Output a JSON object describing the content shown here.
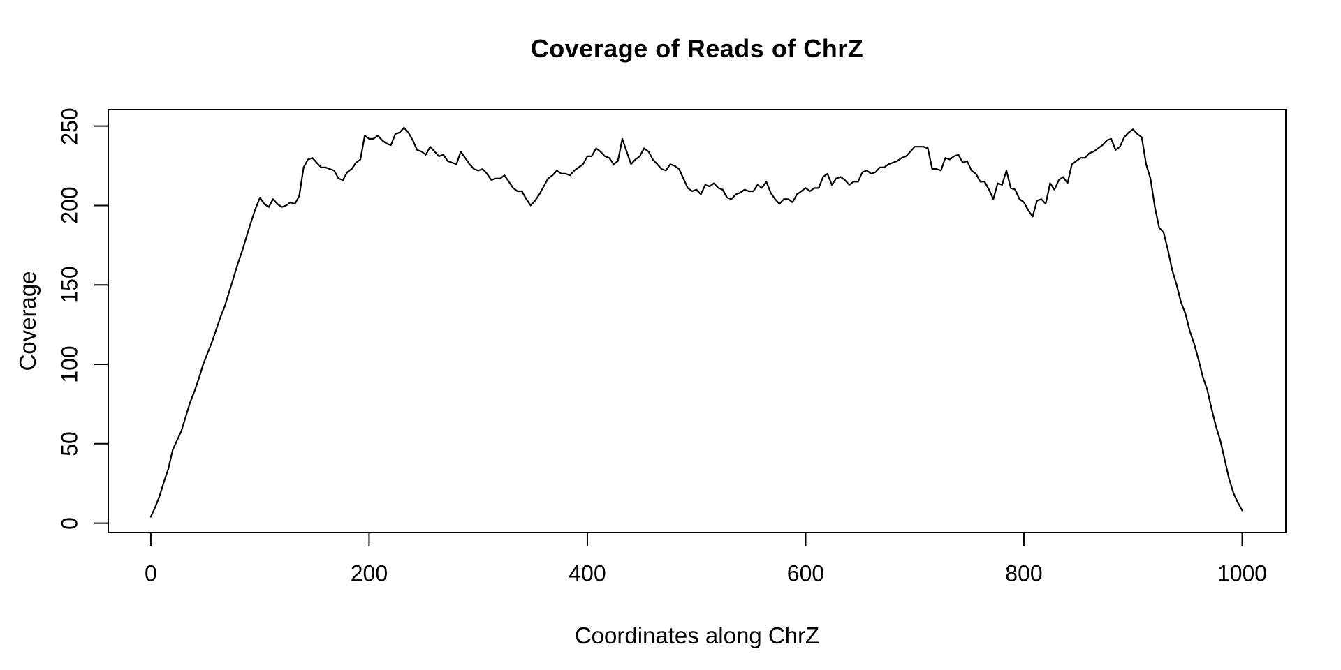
{
  "page": {
    "background_color": "#ffffff",
    "foreground_color": "#000000"
  },
  "chart_data": {
    "type": "line",
    "title": "Coverage of Reads of ChrZ",
    "xlabel": "Coordinates along ChrZ",
    "ylabel": "Coverage",
    "grid": false,
    "legend_position": "none",
    "line_color": "#000000",
    "x_ticks": [
      0,
      200,
      400,
      600,
      800,
      1000
    ],
    "y_ticks": [
      0,
      50,
      100,
      150,
      200,
      250
    ],
    "xlim": [
      -39,
      1040
    ],
    "ylim": [
      -5.9,
      260.4
    ],
    "series": [
      {
        "name": "coverage",
        "x_start": 0,
        "x_step": 4,
        "y": [
          4,
          10,
          17,
          26,
          34,
          46,
          52,
          58,
          67,
          76,
          83,
          91,
          100,
          107,
          114,
          122,
          130,
          137,
          146,
          155,
          164,
          172,
          181,
          190,
          198,
          205,
          201,
          199,
          204,
          201,
          199,
          200,
          202,
          201,
          206,
          224,
          229,
          230,
          227,
          224,
          224,
          223,
          222,
          217,
          216,
          221,
          223,
          227,
          229,
          244,
          242,
          242,
          244,
          241,
          239,
          238,
          245,
          246,
          249,
          246,
          241,
          235,
          234,
          232,
          237,
          234,
          231,
          232,
          228,
          227,
          226,
          234,
          230,
          226,
          223,
          222,
          223,
          220,
          216,
          217,
          217,
          219,
          215,
          211,
          209,
          209,
          204,
          200,
          203,
          207,
          212,
          217,
          219,
          222,
          220,
          220,
          219,
          222,
          224,
          226,
          231,
          231,
          236,
          234,
          231,
          230,
          226,
          228,
          242,
          234,
          226,
          229,
          231,
          236,
          234,
          229,
          226,
          223,
          222,
          226,
          225,
          223,
          217,
          211,
          209,
          210,
          207,
          213,
          212,
          214,
          211,
          210,
          205,
          204,
          207,
          208,
          210,
          209,
          209,
          213,
          211,
          215,
          208,
          204,
          201,
          204,
          204,
          202,
          207,
          209,
          211,
          209,
          211,
          211,
          218,
          220,
          213,
          217,
          218,
          216,
          213,
          215,
          215,
          221,
          222,
          220,
          221,
          224,
          224,
          226,
          227,
          228,
          230,
          231,
          234,
          237,
          237,
          237,
          236,
          223,
          223,
          222,
          230,
          229,
          231,
          232,
          227,
          228,
          222,
          220,
          215,
          215,
          210,
          204,
          214,
          213,
          222,
          211,
          210,
          204,
          202,
          197,
          193,
          203,
          204,
          201,
          214,
          210,
          216,
          218,
          214,
          226,
          228,
          230,
          230,
          233,
          234,
          236,
          238,
          241,
          242,
          235,
          237,
          243,
          246,
          248,
          245,
          243,
          226,
          217,
          199,
          186,
          183,
          172,
          159,
          150,
          139,
          132,
          121,
          113,
          103,
          92,
          84,
          72,
          61,
          52,
          40,
          28,
          19,
          13,
          8
        ]
      }
    ]
  }
}
